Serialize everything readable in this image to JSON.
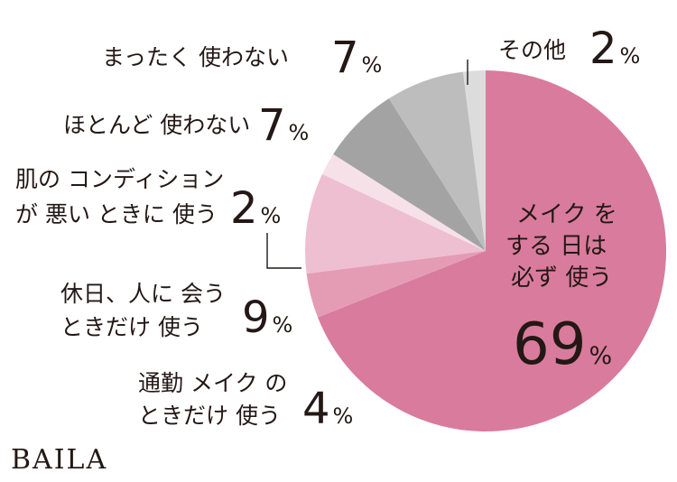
{
  "chart_data": {
    "type": "pie",
    "unit": "%",
    "slices": [
      {
        "label_lines": [
          "メイク を",
          "する 日は",
          "必ず 使う"
        ],
        "value": 69,
        "color": "#d97b9c"
      },
      {
        "label_lines": [
          "通勤 メイク の",
          "ときだけ 使う"
        ],
        "value": 4,
        "color": "#e49cb5"
      },
      {
        "label_lines": [
          "休日、人に 会う",
          "ときだけ 使う"
        ],
        "value": 9,
        "color": "#edbfd0"
      },
      {
        "label_lines": [
          "肌の コンディション",
          "が 悪い ときに 使う"
        ],
        "value": 2,
        "color": "#f6e1e9"
      },
      {
        "label_lines": [
          "ほとんど 使わない"
        ],
        "value": 7,
        "color": "#a3a3a3"
      },
      {
        "label_lines": [
          "まったく 使わない"
        ],
        "value": 7,
        "color": "#bdbdbd"
      },
      {
        "label_lines": [
          "その他"
        ],
        "value": 2,
        "color": "#dcdcdc"
      }
    ]
  },
  "brand": {
    "logo_text": "BAILA"
  }
}
